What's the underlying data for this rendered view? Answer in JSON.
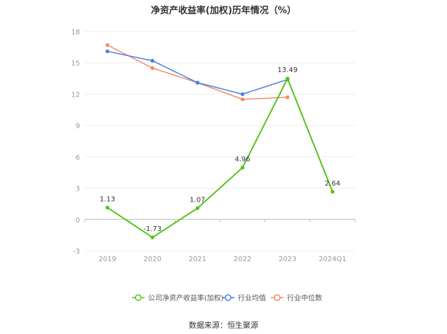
{
  "chart_data": {
    "type": "line",
    "title": "净资产收益率(加权)历年情况（%）",
    "categories": [
      "2019",
      "2020",
      "2021",
      "2022",
      "2023",
      "2024Q1"
    ],
    "ylim": [
      -3,
      18
    ],
    "yticks": [
      -3,
      0,
      3,
      6,
      9,
      12,
      15,
      18
    ],
    "grid": true,
    "legend_position": "bottom",
    "series": [
      {
        "name": "公司净资产收益率(加权)",
        "color": "#52c41a",
        "values": [
          1.13,
          -1.73,
          1.07,
          4.96,
          13.49,
          2.64
        ],
        "labels": [
          "1.13",
          "-1.73",
          "1.07",
          "4.96",
          "13.49",
          "2.64"
        ]
      },
      {
        "name": "行业均值",
        "color": "#4a7ee0",
        "values": [
          16.1,
          15.2,
          13.1,
          12.0,
          13.4,
          null
        ]
      },
      {
        "name": "行业中位数",
        "color": "#f08a63",
        "values": [
          16.7,
          14.5,
          13.1,
          11.5,
          11.7,
          null
        ]
      }
    ]
  },
  "source": "数据来源：恒生聚源"
}
